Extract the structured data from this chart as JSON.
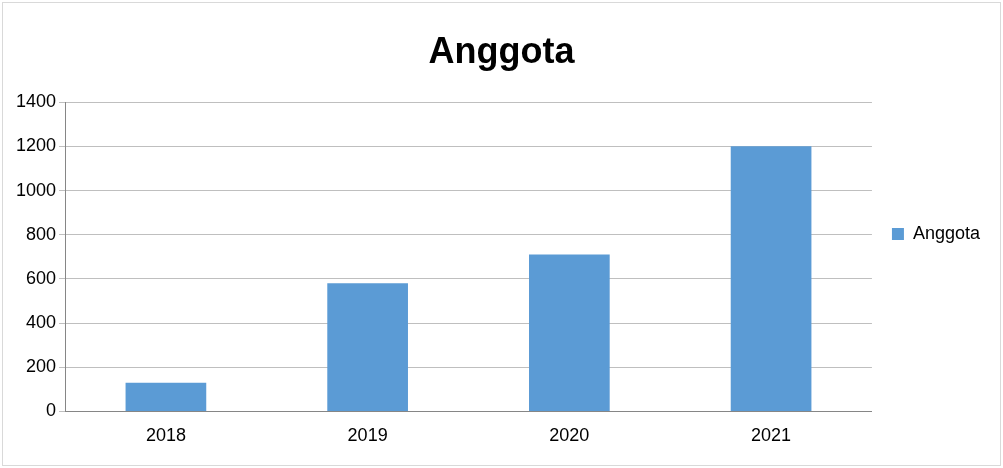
{
  "chart_data": {
    "type": "bar",
    "title": "Anggota",
    "categories": [
      "2018",
      "2019",
      "2020",
      "2021"
    ],
    "series": [
      {
        "name": "Anggota",
        "color": "#5b9bd5",
        "values": [
          130,
          580,
          710,
          1200
        ]
      }
    ],
    "ylim": [
      0,
      1400
    ],
    "yticks": [
      0,
      200,
      400,
      600,
      800,
      1000,
      1200,
      1400
    ],
    "grid": "y",
    "legend": "right"
  }
}
